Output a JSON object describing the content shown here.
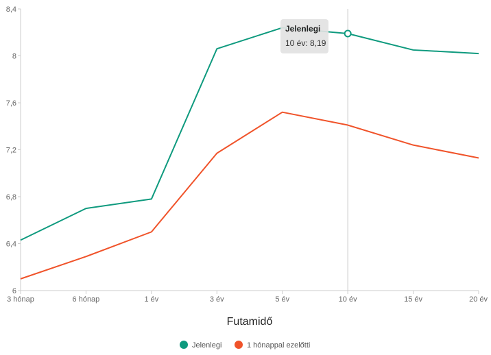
{
  "chart_data": {
    "type": "line",
    "categories": [
      "3 hónap",
      "6 hónap",
      "1 év",
      "3 év",
      "5 év",
      "10 év",
      "15 év",
      "20 év"
    ],
    "series": [
      {
        "name": "Jelenlegi",
        "color": "#0e9a7e",
        "values": [
          6.43,
          6.7,
          6.78,
          8.06,
          8.24,
          8.19,
          8.05,
          8.02
        ]
      },
      {
        "name": "1 hónappal ezelőtti",
        "color": "#f0532a",
        "values": [
          6.1,
          6.29,
          6.5,
          7.17,
          7.52,
          7.41,
          7.24,
          7.13
        ]
      }
    ],
    "ylim": [
      6,
      8.4
    ],
    "yticks": [
      6,
      6.4,
      6.8,
      7.2,
      7.6,
      8,
      8.4
    ],
    "ytick_labels": [
      "6",
      "6,4",
      "6,8",
      "7,2",
      "7,6",
      "8",
      "8,4"
    ],
    "xlabel": "Futamidő",
    "ylabel": "",
    "grid": false,
    "legend_position": "bottom",
    "tooltip": {
      "series_index": 0,
      "category_index": 5,
      "title": "Jelenlegi",
      "text": "10 év: 8,19"
    }
  }
}
